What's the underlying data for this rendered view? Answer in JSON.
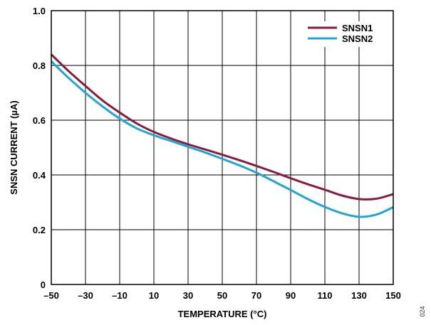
{
  "chart_data": {
    "type": "line",
    "title": "",
    "xlabel": "TEMPERATURE (°C)",
    "ylabel": "SNSN CURRENT (µA)",
    "xlim": [
      -50,
      150
    ],
    "ylim": [
      0,
      1.0
    ],
    "x_ticks": [
      -50,
      -30,
      -10,
      10,
      30,
      50,
      70,
      90,
      110,
      130,
      150
    ],
    "x_tick_labels": [
      "–50",
      "–30",
      "–10",
      "10",
      "30",
      "50",
      "70",
      "90",
      "110",
      "130",
      "150"
    ],
    "y_ticks": [
      0,
      0.2,
      0.4,
      0.6,
      0.8,
      1.0
    ],
    "y_tick_labels": [
      "0",
      "0.2",
      "0.4",
      "0.6",
      "0.8",
      "1.0"
    ],
    "grid": true,
    "legend_position": "top-right",
    "series": [
      {
        "name": "SNSN1",
        "color": "#8b1a3d",
        "x": [
          -50,
          -40,
          -30,
          -20,
          -10,
          0,
          10,
          20,
          30,
          40,
          50,
          60,
          70,
          80,
          90,
          100,
          110,
          120,
          130,
          140,
          150
        ],
        "y": [
          0.84,
          0.78,
          0.725,
          0.672,
          0.628,
          0.588,
          0.557,
          0.533,
          0.512,
          0.493,
          0.474,
          0.454,
          0.433,
          0.411,
          0.388,
          0.366,
          0.346,
          0.325,
          0.312,
          0.313,
          0.33
        ]
      },
      {
        "name": "SNSN2",
        "color": "#1fa5d6",
        "x": [
          -50,
          -40,
          -30,
          -20,
          -10,
          0,
          10,
          20,
          30,
          40,
          50,
          60,
          70,
          80,
          90,
          100,
          110,
          120,
          130,
          140,
          150
        ],
        "y": [
          0.815,
          0.755,
          0.7,
          0.65,
          0.606,
          0.57,
          0.545,
          0.524,
          0.503,
          0.482,
          0.459,
          0.435,
          0.408,
          0.377,
          0.345,
          0.312,
          0.283,
          0.26,
          0.247,
          0.255,
          0.282
        ]
      }
    ]
  },
  "figure_id": "024"
}
